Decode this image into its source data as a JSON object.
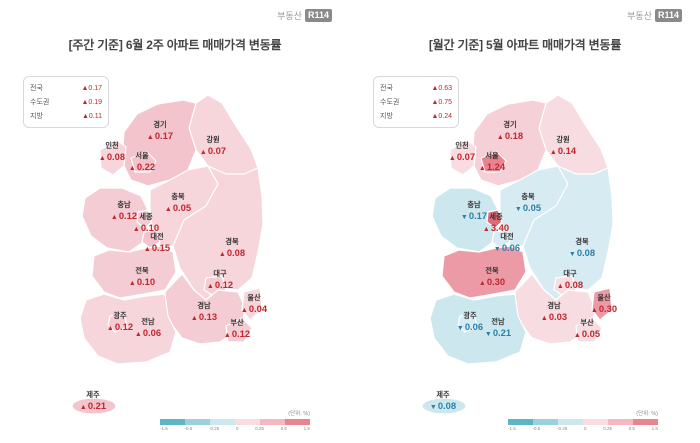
{
  "logo": {
    "text": "부동산",
    "mark": "R114"
  },
  "legend": {
    "unit": "(단위: %)",
    "ticks": [
      "-1.5",
      "-0.5",
      "-0.25",
      "0",
      "0.25",
      "0.5",
      "1.5"
    ],
    "colors": [
      "#5fb4c6",
      "#9cd0dd",
      "#cde7ee",
      "#f9dde2",
      "#f4b8c1",
      "#e9848f"
    ]
  },
  "weekly": {
    "title": "[주간 기준] 6월 2주 아파트 매매가격 변동률",
    "summary": [
      {
        "label": "전국",
        "value": "▲0.17"
      },
      {
        "label": "수도권",
        "value": "▲0.19"
      },
      {
        "label": "지방",
        "value": "▲0.11"
      }
    ],
    "regions": {
      "gyeonggi": {
        "name": "경기",
        "value": "0.17",
        "dir": "up",
        "fill": "#f3c4cc"
      },
      "incheon": {
        "name": "인천",
        "value": "0.08",
        "dir": "up",
        "fill": "#f6d5db"
      },
      "seoul": {
        "name": "서울",
        "value": "0.22",
        "dir": "up",
        "fill": "#f3c4cc"
      },
      "gangwon": {
        "name": "강원",
        "value": "0.07",
        "dir": "up",
        "fill": "#f6d5db"
      },
      "chungnam": {
        "name": "충남",
        "value": "0.12",
        "dir": "up",
        "fill": "#f4ccd3"
      },
      "sejong": {
        "name": "세종",
        "value": "0.10",
        "dir": "up",
        "fill": "#f4ccd3"
      },
      "chungbuk": {
        "name": "충북",
        "value": "0.05",
        "dir": "up",
        "fill": "#f6d5db"
      },
      "daejeon": {
        "name": "대전",
        "value": "0.15",
        "dir": "up",
        "fill": "#f3c4cc"
      },
      "gyeongbuk": {
        "name": "경북",
        "value": "0.08",
        "dir": "up",
        "fill": "#f6d5db"
      },
      "jeonbuk": {
        "name": "전북",
        "value": "0.10",
        "dir": "up",
        "fill": "#f4ccd3"
      },
      "daegu": {
        "name": "대구",
        "value": "0.12",
        "dir": "up",
        "fill": "#f4ccd3"
      },
      "ulsan": {
        "name": "울산",
        "value": "0.04",
        "dir": "up",
        "fill": "#f6d5db"
      },
      "gwangju": {
        "name": "광주",
        "value": "0.12",
        "dir": "up",
        "fill": "#f4ccd3"
      },
      "gyeongnam": {
        "name": "경남",
        "value": "0.13",
        "dir": "up",
        "fill": "#f4ccd3"
      },
      "jeonnam": {
        "name": "전남",
        "value": "0.06",
        "dir": "up",
        "fill": "#f6d5db"
      },
      "busan": {
        "name": "부산",
        "value": "0.12",
        "dir": "up",
        "fill": "#f4ccd3"
      },
      "jeju": {
        "name": "제주",
        "value": "0.21",
        "dir": "up",
        "fill": "#f3c4cc"
      }
    }
  },
  "monthly": {
    "title": "[월간 기준] 5월 아파트 매매가격 변동률",
    "summary": [
      {
        "label": "전국",
        "value": "▲0.63"
      },
      {
        "label": "수도권",
        "value": "▲0.75"
      },
      {
        "label": "지방",
        "value": "▲0.24"
      }
    ],
    "regions": {
      "gyeonggi": {
        "name": "경기",
        "value": "0.18",
        "dir": "up",
        "fill": "#f6d0d7"
      },
      "incheon": {
        "name": "인천",
        "value": "0.07",
        "dir": "up",
        "fill": "#f7dce1"
      },
      "seoul": {
        "name": "서울",
        "value": "1.24",
        "dir": "up",
        "fill": "#e9848f"
      },
      "gangwon": {
        "name": "강원",
        "value": "0.14",
        "dir": "up",
        "fill": "#f7dce1"
      },
      "chungnam": {
        "name": "충남",
        "value": "0.17",
        "dir": "down",
        "fill": "#cde7ee"
      },
      "sejong": {
        "name": "세종",
        "value": "3.40",
        "dir": "up",
        "fill": "#e06b78"
      },
      "chungbuk": {
        "name": "충북",
        "value": "0.05",
        "dir": "down",
        "fill": "#d6ecf2"
      },
      "daejeon": {
        "name": "대전",
        "value": "0.06",
        "dir": "down",
        "fill": "#d6ecf2"
      },
      "gyeongbuk": {
        "name": "경북",
        "value": "0.08",
        "dir": "down",
        "fill": "#d6ecf2"
      },
      "jeonbuk": {
        "name": "전북",
        "value": "0.30",
        "dir": "up",
        "fill": "#ec9aa5"
      },
      "daegu": {
        "name": "대구",
        "value": "0.08",
        "dir": "up",
        "fill": "#f7dce1"
      },
      "ulsan": {
        "name": "울산",
        "value": "0.30",
        "dir": "up",
        "fill": "#ec9aa5"
      },
      "gwangju": {
        "name": "광주",
        "value": "0.06",
        "dir": "down",
        "fill": "#d6ecf2"
      },
      "gyeongnam": {
        "name": "경남",
        "value": "0.03",
        "dir": "up",
        "fill": "#f7dce1"
      },
      "jeonnam": {
        "name": "전남",
        "value": "0.21",
        "dir": "down",
        "fill": "#cde7ee"
      },
      "busan": {
        "name": "부산",
        "value": "0.05",
        "dir": "up",
        "fill": "#f7dce1"
      },
      "jeju": {
        "name": "제주",
        "value": "0.08",
        "dir": "down",
        "fill": "#cde7ee"
      }
    }
  }
}
